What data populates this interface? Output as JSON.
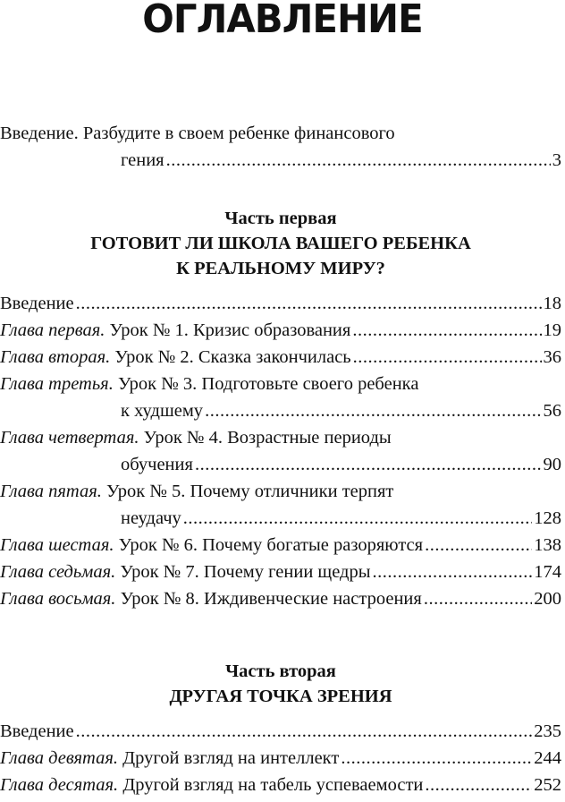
{
  "title": "ОГЛАВЛЕНИЕ",
  "intro": {
    "line1": "Введение. Разбудите в своем ребенке финансового",
    "line2": "гения",
    "page": "3"
  },
  "parts": [
    {
      "label": "Часть первая",
      "title_lines": [
        "ГОТОВИТ ЛИ ШКОЛА ВАШЕГО РЕБЕНКА",
        "К РЕАЛЬНОМУ МИРУ?"
      ],
      "entries": [
        {
          "chapter": "",
          "text": "Введение",
          "page": "18"
        },
        {
          "chapter": "Глава первая.",
          "text": " Урок № 1. Кризис образования",
          "page": "19"
        },
        {
          "chapter": "Глава вторая.",
          "text": " Урок № 2. Сказка закончилась",
          "page": "36"
        },
        {
          "chapter": "Глава третья.",
          "text": " Урок № 3. Подготовьте своего ребенка",
          "cont": "к худшему",
          "page": "56"
        },
        {
          "chapter": "Глава четвертая.",
          "text": " Урок № 4. Возрастные периоды",
          "cont": "обучения",
          "page": "90"
        },
        {
          "chapter": "Глава пятая.",
          "text": " Урок № 5. Почему отличники терпят",
          "cont": "неудачу",
          "page": "128"
        },
        {
          "chapter": "Глава шестая.",
          "text": " Урок № 6. Почему богатые разоряются",
          "page": "138"
        },
        {
          "chapter": "Глава седьмая.",
          "text": " Урок № 7. Почему гении щедры",
          "page": "174"
        },
        {
          "chapter": "Глава восьмая.",
          "text": " Урок № 8. Иждивенческие настроения",
          "page": "200"
        }
      ]
    },
    {
      "label": "Часть вторая",
      "title_lines": [
        "ДРУГАЯ ТОЧКА ЗРЕНИЯ"
      ],
      "entries": [
        {
          "chapter": "",
          "text": "Введение",
          "page": "235"
        },
        {
          "chapter": "Глава девятая.",
          "text": " Другой взгляд на интеллект",
          "page": "244"
        },
        {
          "chapter": "Глава десятая.",
          "text": " Другой взгляд на табель успеваемости",
          "page": "252"
        }
      ]
    }
  ]
}
